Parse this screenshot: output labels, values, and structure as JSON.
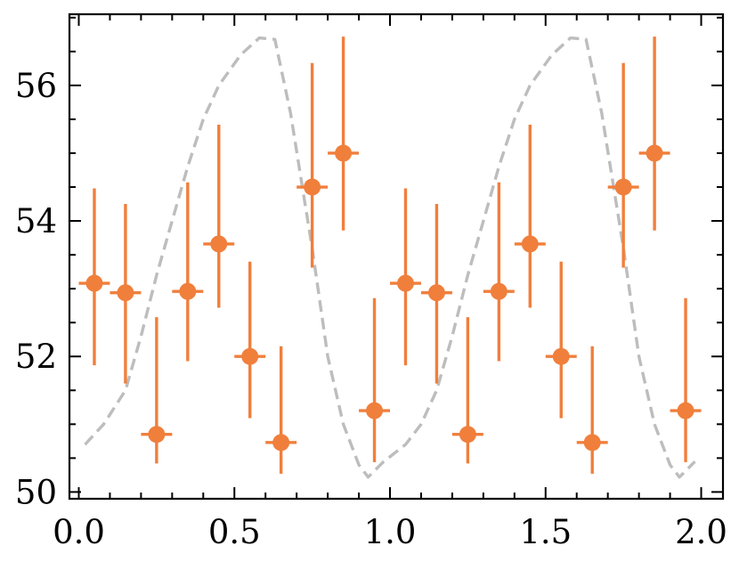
{
  "chart_data": {
    "type": "scatter",
    "title": "",
    "xlabel": "",
    "ylabel": "",
    "xlim": [
      -0.03,
      2.07
    ],
    "ylim": [
      49.9,
      57.05
    ],
    "grid": false,
    "ticks_direction": "in",
    "x_ticks": [
      0.0,
      0.5,
      1.0,
      1.5,
      2.0
    ],
    "x_tick_labels": [
      "0.0",
      "0.5",
      "1.0",
      "1.5",
      "2.0"
    ],
    "y_ticks": [
      50,
      52,
      54,
      56
    ],
    "y_tick_labels": [
      "50",
      "52",
      "54",
      "56"
    ],
    "colors": {
      "points": "#f07f3c",
      "model_line": "#bdbdbd",
      "axes": "#000000"
    },
    "series": [
      {
        "kind": "errorbar",
        "x": [
          0.05,
          0.15,
          0.25,
          0.35,
          0.45,
          0.55,
          0.65,
          0.75,
          0.85,
          0.95,
          1.05,
          1.15,
          1.25,
          1.35,
          1.45,
          1.55,
          1.65,
          1.75,
          1.85,
          1.95
        ],
        "y": [
          53.08,
          52.94,
          50.85,
          52.96,
          53.66,
          52.0,
          50.73,
          54.5,
          55.0,
          51.2,
          53.08,
          52.94,
          50.85,
          52.96,
          53.66,
          52.0,
          50.73,
          54.5,
          55.0,
          51.2
        ],
        "x_err": 0.05,
        "y_lower": [
          51.87,
          51.6,
          50.42,
          51.93,
          52.72,
          51.09,
          50.27,
          53.31,
          53.86,
          50.44,
          51.87,
          51.6,
          50.42,
          51.93,
          52.72,
          51.09,
          50.27,
          53.31,
          53.86,
          50.44
        ],
        "y_upper": [
          54.48,
          54.25,
          52.58,
          54.57,
          55.42,
          53.4,
          52.15,
          56.33,
          56.72,
          52.86,
          54.48,
          54.25,
          52.58,
          54.57,
          55.42,
          53.4,
          52.15,
          56.33,
          56.72,
          52.86
        ]
      },
      {
        "kind": "line",
        "style": "dashed",
        "x": [
          0.02,
          0.08,
          0.15,
          0.2,
          0.25,
          0.3,
          0.35,
          0.4,
          0.45,
          0.52,
          0.58,
          0.63,
          0.68,
          0.75,
          0.8,
          0.85,
          0.9,
          0.93,
          0.98,
          1.05,
          1.1,
          1.15,
          1.2,
          1.25,
          1.3,
          1.35,
          1.4,
          1.45,
          1.52,
          1.58,
          1.63,
          1.68,
          1.75,
          1.8,
          1.85,
          1.9,
          1.93,
          1.98
        ],
        "y": [
          50.7,
          51.0,
          51.5,
          52.3,
          53.2,
          54.0,
          54.8,
          55.5,
          56.0,
          56.45,
          56.7,
          56.68,
          55.6,
          53.6,
          52.0,
          51.0,
          50.4,
          50.22,
          50.45,
          50.7,
          51.0,
          51.5,
          52.3,
          53.2,
          54.0,
          54.8,
          55.5,
          56.0,
          56.45,
          56.7,
          56.68,
          55.6,
          53.6,
          52.0,
          51.0,
          50.4,
          50.22,
          50.45
        ]
      }
    ]
  }
}
